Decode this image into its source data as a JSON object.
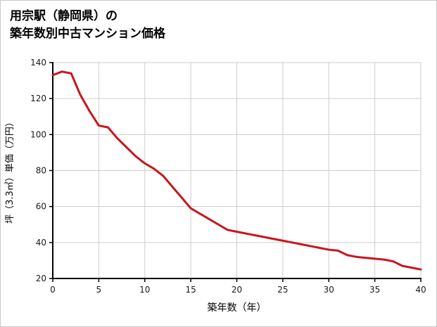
{
  "page": {
    "background": "#ffffff",
    "border_color": "#c9c9c9"
  },
  "title_lines": [
    "用宗駅（静岡県）の",
    "築年数別中古マンション価格"
  ],
  "chart_data": {
    "type": "line",
    "title": "用宗駅（静岡県）の築年数別中古マンション価格",
    "xlabel": "築年数（年）",
    "ylabel": "坪（3.3㎡）単価（万円）",
    "x": [
      0,
      1,
      2,
      3,
      4,
      5,
      6,
      7,
      8,
      9,
      10,
      11,
      12,
      13,
      14,
      15,
      16,
      17,
      18,
      19,
      20,
      21,
      22,
      23,
      24,
      25,
      26,
      27,
      28,
      29,
      30,
      31,
      32,
      33,
      34,
      35,
      36,
      37,
      38,
      39,
      40
    ],
    "values": [
      133,
      135,
      134,
      122,
      113,
      105,
      104,
      98,
      93,
      88,
      84,
      81,
      77,
      71,
      65,
      59,
      56,
      53,
      50,
      47,
      46,
      45,
      44,
      43,
      42,
      41,
      40,
      39,
      38,
      37,
      36,
      35.5,
      33,
      32,
      31.5,
      31,
      30.5,
      29.5,
      27,
      26,
      25
    ],
    "xlim": [
      0,
      40
    ],
    "ylim": [
      20,
      140
    ],
    "xticks": [
      0,
      5,
      10,
      15,
      20,
      25,
      30,
      35,
      40
    ],
    "yticks": [
      20,
      40,
      60,
      80,
      100,
      120,
      140
    ],
    "grid": true,
    "legend_position": "none",
    "line_color": "#c8161d",
    "line_width": 3,
    "grid_color": "#cdcdcd",
    "axis_color": "#000000",
    "tick_label_color": "#1a1a1a",
    "tick_font_size": 12,
    "axis_label_font_size": 14
  }
}
